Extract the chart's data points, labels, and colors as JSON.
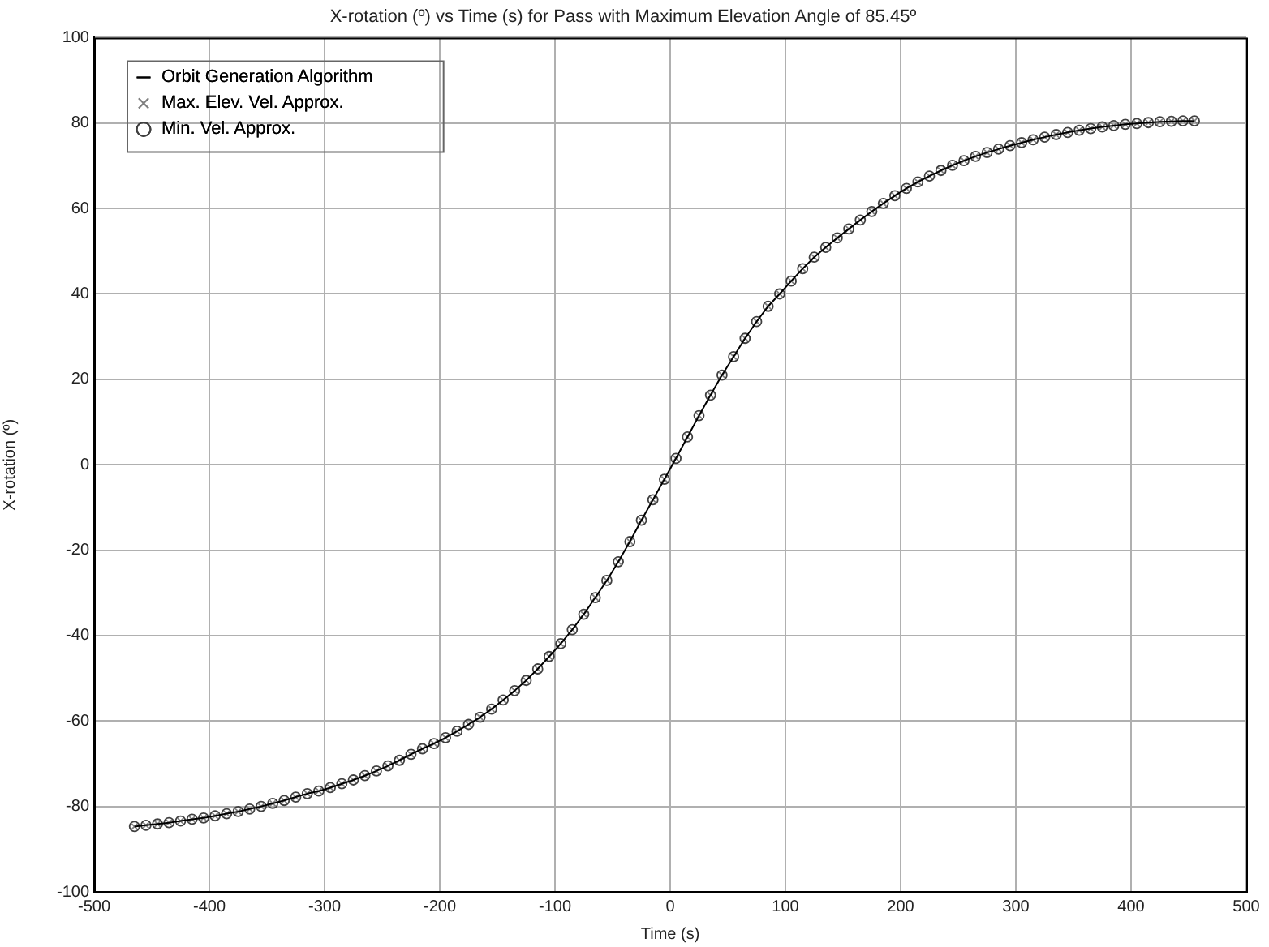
{
  "chart_data": {
    "type": "line",
    "title": "X-rotation (º) vs Time (s) for Pass with Maximum Elevation Angle of 85.45º",
    "xlabel": "Time (s)",
    "ylabel": "X-rotation (º)",
    "x": [
      -465,
      -455,
      -445,
      -435,
      -425,
      -415,
      -405,
      -395,
      -385,
      -375,
      -365,
      -355,
      -345,
      -335,
      -325,
      -315,
      -305,
      -295,
      -285,
      -275,
      -265,
      -255,
      -245,
      -235,
      -225,
      -215,
      -205,
      -195,
      -185,
      -175,
      -165,
      -155,
      -145,
      -135,
      -125,
      -115,
      -105,
      -95,
      -85,
      -75,
      -65,
      -55,
      -45,
      -35,
      -25,
      -15,
      -5,
      5,
      15,
      25,
      35,
      45,
      55,
      65,
      75,
      85,
      95,
      105,
      115,
      125,
      135,
      145,
      155,
      165,
      175,
      185,
      195,
      205,
      215,
      225,
      235,
      245,
      255,
      265,
      275,
      285,
      295,
      305,
      315,
      325,
      335,
      345,
      355,
      365,
      375,
      385,
      395,
      405,
      415,
      425,
      435,
      445,
      455
    ],
    "series": [
      {
        "name": "Orbit Generation Algorithm",
        "color": "#000000",
        "values": [
          -84.7,
          -84.4,
          -84.1,
          -83.8,
          -83.4,
          -83.0,
          -82.7,
          -82.2,
          -81.7,
          -81.2,
          -80.6,
          -80.0,
          -79.3,
          -78.6,
          -77.8,
          -77.0,
          -76.4,
          -75.6,
          -74.7,
          -73.8,
          -72.8,
          -71.7,
          -70.5,
          -69.2,
          -67.8,
          -66.5,
          -65.3,
          -63.9,
          -62.4,
          -60.8,
          -59.1,
          -57.2,
          -55.1,
          -52.9,
          -50.5,
          -47.8,
          -44.9,
          -41.9,
          -38.6,
          -35.0,
          -31.1,
          -27.1,
          -22.7,
          -18.0,
          -13.0,
          -8.2,
          -3.4,
          1.5,
          6.5,
          11.5,
          16.3,
          21.0,
          25.3,
          29.6,
          33.5,
          37.1,
          40.0,
          43.0,
          45.9,
          48.6,
          50.9,
          53.1,
          55.2,
          57.3,
          59.3,
          61.2,
          63.0,
          64.7,
          66.2,
          67.6,
          68.9,
          70.1,
          71.2,
          72.2,
          73.1,
          73.9,
          74.7,
          75.4,
          76.1,
          76.7,
          77.3,
          77.8,
          78.3,
          78.7,
          79.1,
          79.4,
          79.7,
          79.9,
          80.1,
          80.3,
          80.4,
          80.5,
          80.5
        ]
      },
      {
        "name": "Max. Elev. Vel. Approx.",
        "type": "scatter",
        "marker": "cross",
        "color": "#808080",
        "values": [
          -84.7,
          -84.4,
          -84.1,
          -83.8,
          -83.4,
          -83.0,
          -82.7,
          -82.2,
          -81.7,
          -81.2,
          -80.6,
          -80.0,
          -79.3,
          -78.6,
          -77.8,
          -77.0,
          -76.4,
          -75.6,
          -74.7,
          -73.8,
          -72.8,
          -71.7,
          -70.5,
          -69.2,
          -67.8,
          -66.5,
          -65.3,
          -63.9,
          -62.4,
          -60.8,
          -59.1,
          -57.2,
          -55.1,
          -52.9,
          -50.5,
          -47.8,
          -44.9,
          -41.9,
          -38.6,
          -35.0,
          -31.1,
          -27.1,
          -22.7,
          -18.0,
          -13.0,
          -8.2,
          -3.4,
          1.5,
          6.5,
          11.5,
          16.3,
          21.0,
          25.3,
          29.6,
          33.5,
          37.1,
          40.0,
          43.0,
          45.9,
          48.6,
          50.9,
          53.1,
          55.2,
          57.3,
          59.3,
          61.2,
          63.0,
          64.7,
          66.2,
          67.6,
          68.9,
          70.1,
          71.2,
          72.2,
          73.1,
          73.9,
          74.7,
          75.4,
          76.1,
          76.7,
          77.3,
          77.8,
          78.3,
          78.7,
          79.1,
          79.4,
          79.7,
          79.9,
          80.1,
          80.3,
          80.4,
          80.5,
          80.5
        ]
      },
      {
        "name": "Min. Vel. Approx.",
        "type": "scatter",
        "marker": "circle",
        "color": "#404040",
        "values": [
          -84.7,
          -84.4,
          -84.1,
          -83.8,
          -83.4,
          -83.0,
          -82.7,
          -82.2,
          -81.7,
          -81.2,
          -80.6,
          -80.0,
          -79.3,
          -78.6,
          -77.8,
          -77.0,
          -76.4,
          -75.6,
          -74.7,
          -73.8,
          -72.8,
          -71.7,
          -70.5,
          -69.2,
          -67.8,
          -66.5,
          -65.3,
          -63.9,
          -62.4,
          -60.8,
          -59.1,
          -57.2,
          -55.1,
          -52.9,
          -50.5,
          -47.8,
          -44.9,
          -41.9,
          -38.6,
          -35.0,
          -31.1,
          -27.1,
          -22.7,
          -18.0,
          -13.0,
          -8.2,
          -3.4,
          1.5,
          6.5,
          11.5,
          16.3,
          21.0,
          25.3,
          29.6,
          33.5,
          37.1,
          40.0,
          43.0,
          45.9,
          48.6,
          50.9,
          53.1,
          55.2,
          57.3,
          59.3,
          61.2,
          63.0,
          64.7,
          66.2,
          67.6,
          68.9,
          70.1,
          71.2,
          72.2,
          73.1,
          73.9,
          74.7,
          75.4,
          76.1,
          76.7,
          77.3,
          77.8,
          78.3,
          78.7,
          79.1,
          79.4,
          79.7,
          79.9,
          80.1,
          80.3,
          80.4,
          80.5,
          80.5
        ]
      }
    ],
    "xlim": [
      -500,
      500
    ],
    "xticks": [
      -500,
      -400,
      -300,
      -200,
      -100,
      0,
      100,
      200,
      300,
      400,
      500
    ],
    "ylim": [
      -100,
      100
    ],
    "yticks": [
      -100,
      -80,
      -60,
      -40,
      -20,
      0,
      20,
      40,
      60,
      80,
      100
    ],
    "grid": true,
    "legend": "top left"
  }
}
